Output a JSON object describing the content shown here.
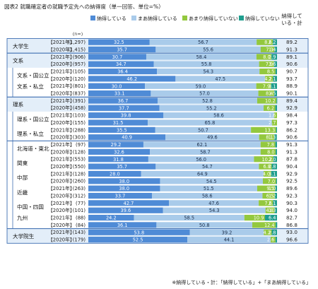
{
  "title": "図表2  就職確定者の就職予定先への納得度（単一回答、単位=%）",
  "n_header": "(n=)",
  "total_header": [
    "納得して",
    "いる・計"
  ],
  "footnote": "※納得している・計：「納得している」+「まあ納得している」",
  "colors": {
    "series": [
      "#4f8bd6",
      "#a9cbea",
      "#93c83e",
      "#1f9e8e"
    ],
    "frame": "#3f6fb2",
    "band": "#e3eef9"
  },
  "chart_data": {
    "type": "bar",
    "stacked": true,
    "orientation": "horizontal",
    "xlim": [
      0,
      100
    ],
    "series_names": [
      "納得している",
      "まあ納得している",
      "あまり納得していない",
      "納得していない"
    ],
    "groups": [
      {
        "label": "大学生",
        "indent": false,
        "rows": [
          {
            "year": "【2021年】",
            "n": "(1,297)",
            "values": [
              32.5,
              56.7,
              8.6,
              2.2
            ],
            "total": 89.2
          },
          {
            "year": "【2020年】",
            "n": "(1,415)",
            "values": [
              35.7,
              55.6,
              7.3,
              1.4
            ],
            "total": 91.3
          }
        ]
      },
      {
        "label": "文系",
        "indent": false,
        "rows": [
          {
            "year": "【2021年】",
            "n": "(906)",
            "values": [
              30.7,
              58.4,
              8.0,
              2.9
            ],
            "total": 89.1
          },
          {
            "year": "【2020年】",
            "n": "(957)",
            "values": [
              34.7,
              55.8,
              7.9,
              1.6
            ],
            "total": 90.6
          }
        ]
      },
      {
        "label": "文系・国公立",
        "indent": true,
        "rows": [
          {
            "year": "【2021年】",
            "n": "(105)",
            "values": [
              36.4,
              54.3,
              8.5,
              0.8
            ],
            "total": 90.7
          },
          {
            "year": "【2020年】",
            "n": "(120)",
            "values": [
              46.2,
              47.5,
              4.2,
              2.1
            ],
            "total": 93.7
          }
        ]
      },
      {
        "label": "文系・私立",
        "indent": true,
        "rows": [
          {
            "year": "【2021年】",
            "n": "(801)",
            "values": [
              30.0,
              59.0,
              7.9,
              3.1
            ],
            "total": 88.9
          }
        ]
      },
      {
        "label": "",
        "indent": true,
        "rows": [
          {
            "year": "【2020年】",
            "n": "(837)",
            "values": [
              33.1,
              57.0,
              8.4,
              1.5
            ],
            "total": 90.1
          }
        ]
      },
      {
        "label": "理系",
        "indent": false,
        "rows": [
          {
            "year": "【2021年】",
            "n": "(391)",
            "values": [
              36.7,
              52.8,
              10.2,
              0.4
            ],
            "total": 89.4
          },
          {
            "year": "【2020年】",
            "n": "(458)",
            "values": [
              37.7,
              55.2,
              6.2,
              0.9
            ],
            "total": 92.9
          }
        ]
      },
      {
        "label": "理系・国公立",
        "indent": true,
        "rows": [
          {
            "year": "【2021年】",
            "n": "(103)",
            "values": [
              39.8,
              58.6,
              1.6,
              0.0
            ],
            "total": 98.4
          },
          {
            "year": "【2020年】",
            "n": "(155)",
            "values": [
              31.5,
              65.8,
              2.7,
              0.0
            ],
            "total": 97.3
          }
        ]
      },
      {
        "label": "理系・私立",
        "indent": true,
        "rows": [
          {
            "year": "【2021年】",
            "n": "(288)",
            "values": [
              35.5,
              50.7,
              13.3,
              0.5
            ],
            "total": 86.2
          },
          {
            "year": "【2020年】",
            "n": "(303)",
            "values": [
              40.9,
              49.6,
              8.1,
              1.3
            ],
            "total": 90.6
          }
        ]
      },
      {
        "label": "北海道・東北",
        "indent": true,
        "rows": [
          {
            "year": "【2021年】",
            "n": "(97)",
            "values": [
              29.2,
              62.1,
              7.8,
              0.9
            ],
            "total": 91.3
          },
          {
            "year": "【2020年】",
            "n": "(128)",
            "values": [
              32.6,
              58.7,
              8.0,
              0.7
            ],
            "total": 91.3
          }
        ]
      },
      {
        "label": "関東",
        "indent": true,
        "rows": [
          {
            "year": "【2021年】",
            "n": "(553)",
            "values": [
              31.8,
              56.0,
              10.2,
              2.0
            ],
            "total": 87.8
          },
          {
            "year": "【2020年】",
            "n": "(550)",
            "values": [
              35.7,
              54.7,
              6.8,
              2.8
            ],
            "total": 90.4
          }
        ]
      },
      {
        "label": "中部",
        "indent": true,
        "rows": [
          {
            "year": "【2021年】",
            "n": "(128)",
            "values": [
              28.0,
              64.9,
              4.0,
              3.1
            ],
            "total": 92.9
          },
          {
            "year": "【2020年】",
            "n": "(260)",
            "values": [
              38.0,
              54.5,
              7.0,
              0.5
            ],
            "total": 92.5
          }
        ]
      },
      {
        "label": "近畿",
        "indent": true,
        "rows": [
          {
            "year": "【2021年】",
            "n": "(263)",
            "values": [
              38.0,
              51.5,
              9.5,
              1.0
            ],
            "total": 89.6
          },
          {
            "year": "【2020年】",
            "n": "(312)",
            "values": [
              33.7,
              58.6,
              6.5,
              1.2
            ],
            "total": 92.3
          }
        ]
      },
      {
        "label": "中国・四国",
        "indent": true,
        "rows": [
          {
            "year": "【2021年】",
            "n": "(77)",
            "values": [
              42.7,
              47.6,
              7.6,
              2.1
            ],
            "total": 90.3
          },
          {
            "year": "【2020年】",
            "n": "(101)",
            "values": [
              39.6,
              54.3,
              4.8,
              1.3
            ],
            "total": 94.0
          }
        ]
      },
      {
        "label": "九州",
        "indent": true,
        "rows": [
          {
            "year": "【2021年】",
            "n": "(88)",
            "values": [
              24.2,
              58.5,
              10.9,
              6.4
            ],
            "total": 82.7
          }
        ]
      },
      {
        "label": "",
        "indent": true,
        "rows": [
          {
            "year": "【2020年】",
            "n": "(84)",
            "values": [
              36.1,
              50.8,
              12.4,
              0.8
            ],
            "total": 86.8
          }
        ]
      },
      {
        "label": "大学院生",
        "indent": false,
        "rows": [
          {
            "year": "【2021年】",
            "n": "(143)",
            "values": [
              53.8,
              39.2,
              4.2,
              2.8
            ],
            "total": 93.0
          },
          {
            "year": "【2020年】",
            "n": "(179)",
            "values": [
              52.5,
              44.1,
              2.6,
              0.8
            ],
            "total": 96.6
          }
        ]
      }
    ]
  }
}
